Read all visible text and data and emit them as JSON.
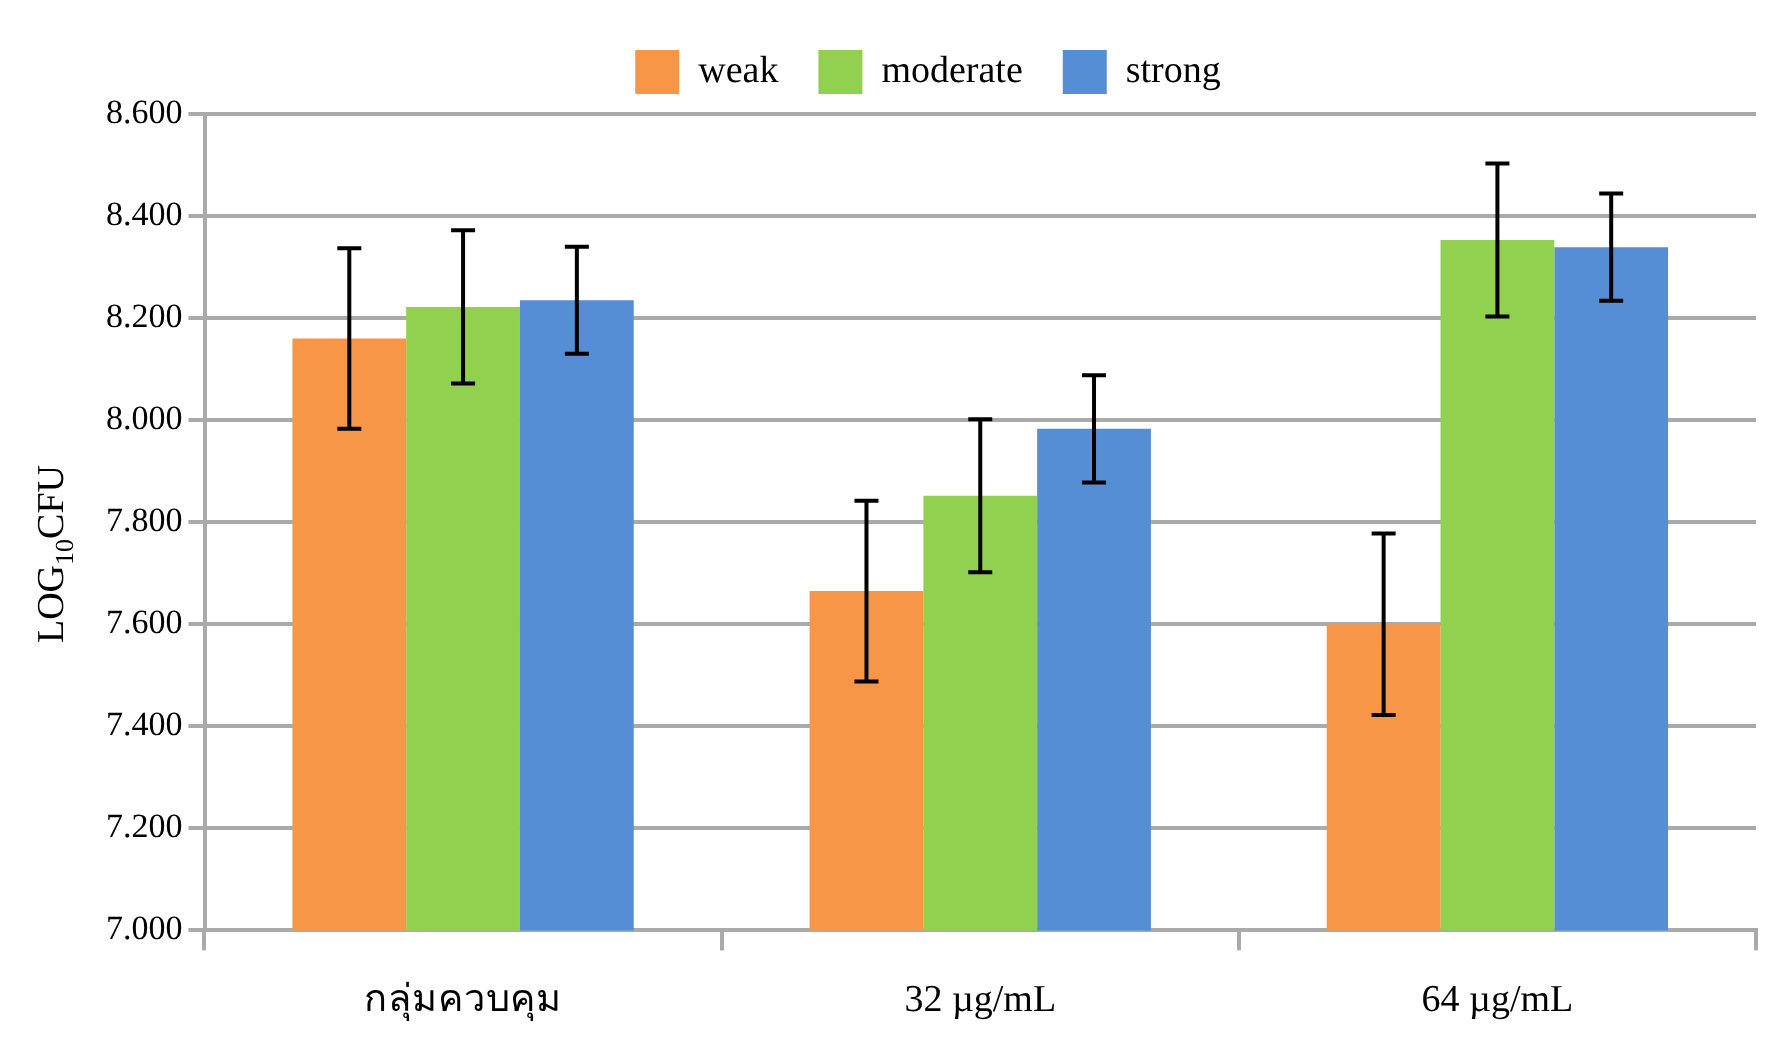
{
  "chart_data": {
    "type": "bar",
    "ylabel": "LOG$_{10}$CFU",
    "categories": [
      "กลุ่มควบคุม",
      "32 µg/mL",
      "64 µg/mL"
    ],
    "series": [
      {
        "name": "weak",
        "color": "#f79646",
        "values": [
          8.16,
          7.665,
          7.6
        ],
        "errors": [
          0.177,
          0.177,
          0.178
        ]
      },
      {
        "name": "moderate",
        "color": "#92d050",
        "values": [
          8.222,
          7.852,
          8.353
        ],
        "errors": [
          0.15,
          0.15,
          0.15
        ]
      },
      {
        "name": "strong",
        "color": "#558ed5",
        "values": [
          8.235,
          7.983,
          8.339
        ],
        "errors": [
          0.105,
          0.105,
          0.105
        ]
      }
    ],
    "ylim": [
      7,
      8.6
    ],
    "yticks": [
      {
        "value": 7,
        "label": "7.000"
      },
      {
        "value": 7.2,
        "label": "7.200"
      },
      {
        "value": 7.4,
        "label": "7.400"
      },
      {
        "value": 7.6,
        "label": "7.600"
      },
      {
        "value": 7.8,
        "label": "7.800"
      },
      {
        "value": 8,
        "label": "8.000"
      },
      {
        "value": 8.2,
        "label": "8.200"
      },
      {
        "value": 8.4,
        "label": "8.400"
      },
      {
        "value": 8.6,
        "label": "8.600"
      }
    ],
    "grid": "y",
    "legend": "top"
  }
}
